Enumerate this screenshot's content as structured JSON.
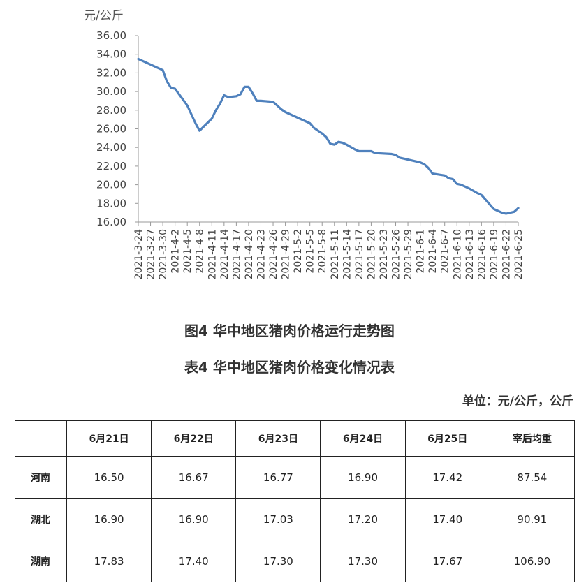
{
  "chart_data": {
    "type": "line",
    "ylabel": "元/公斤",
    "ylim": [
      16,
      36
    ],
    "yticks": [
      "16.00",
      "18.00",
      "20.00",
      "22.00",
      "24.00",
      "26.00",
      "28.00",
      "30.00",
      "32.00",
      "34.00",
      "36.00"
    ],
    "grid": false,
    "xticks": [
      "2021-3-24",
      "2021-3-27",
      "2021-3-30",
      "2021-4-2",
      "2021-4-5",
      "2021-4-8",
      "2021-4-11",
      "2021-4-14",
      "2021-4-17",
      "2021-4-20",
      "2021-4-23",
      "2021-4-26",
      "2021-4-29",
      "2021-5-2",
      "2021-5-5",
      "2021-5-8",
      "2021-5-11",
      "2021-5-14",
      "2021-5-17",
      "2021-5-20",
      "2021-5-23",
      "2021-5-26",
      "2021-5-29",
      "2021-6-1",
      "2021-6-4",
      "2021-6-7",
      "2021-6-10",
      "2021-6-13",
      "2021-6-16",
      "2021-6-19",
      "2021-6-22",
      "2021-6-25"
    ],
    "series": [
      {
        "color": "#4f81bd",
        "points": [
          [
            "2021-3-24",
            33.5
          ],
          [
            "2021-3-27",
            32.9
          ],
          [
            "2021-3-30",
            32.3
          ],
          [
            "2021-3-31",
            31.1
          ],
          [
            "2021-4-1",
            30.4
          ],
          [
            "2021-4-2",
            30.3
          ],
          [
            "2021-4-5",
            28.5
          ],
          [
            "2021-4-7",
            26.6
          ],
          [
            "2021-4-8",
            25.8
          ],
          [
            "2021-4-11",
            27.1
          ],
          [
            "2021-4-12",
            28.0
          ],
          [
            "2021-4-13",
            28.7
          ],
          [
            "2021-4-14",
            29.6
          ],
          [
            "2021-4-15",
            29.4
          ],
          [
            "2021-4-17",
            29.5
          ],
          [
            "2021-4-18",
            29.7
          ],
          [
            "2021-4-19",
            30.5
          ],
          [
            "2021-4-20",
            30.5
          ],
          [
            "2021-4-21",
            29.8
          ],
          [
            "2021-4-22",
            29.0
          ],
          [
            "2021-4-23",
            29.0
          ],
          [
            "2021-4-26",
            28.9
          ],
          [
            "2021-4-27",
            28.5
          ],
          [
            "2021-4-28",
            28.1
          ],
          [
            "2021-4-29",
            27.8
          ],
          [
            "2021-5-2",
            27.2
          ],
          [
            "2021-5-5",
            26.6
          ],
          [
            "2021-5-6",
            26.1
          ],
          [
            "2021-5-8",
            25.5
          ],
          [
            "2021-5-9",
            25.1
          ],
          [
            "2021-5-10",
            24.4
          ],
          [
            "2021-5-11",
            24.3
          ],
          [
            "2021-5-12",
            24.6
          ],
          [
            "2021-5-13",
            24.5
          ],
          [
            "2021-5-14",
            24.3
          ],
          [
            "2021-5-16",
            23.8
          ],
          [
            "2021-5-17",
            23.6
          ],
          [
            "2021-5-20",
            23.6
          ],
          [
            "2021-5-21",
            23.4
          ],
          [
            "2021-5-25",
            23.3
          ],
          [
            "2021-5-26",
            23.2
          ],
          [
            "2021-5-27",
            22.9
          ],
          [
            "2021-5-28",
            22.8
          ],
          [
            "2021-5-29",
            22.7
          ],
          [
            "2021-6-1",
            22.4
          ],
          [
            "2021-6-2",
            22.2
          ],
          [
            "2021-6-3",
            21.8
          ],
          [
            "2021-6-4",
            21.2
          ],
          [
            "2021-6-7",
            21.0
          ],
          [
            "2021-6-8",
            20.7
          ],
          [
            "2021-6-9",
            20.6
          ],
          [
            "2021-6-10",
            20.1
          ],
          [
            "2021-6-11",
            20.0
          ],
          [
            "2021-6-13",
            19.6
          ],
          [
            "2021-6-15",
            19.1
          ],
          [
            "2021-6-16",
            18.9
          ],
          [
            "2021-6-19",
            17.4
          ],
          [
            "2021-6-20",
            17.2
          ],
          [
            "2021-6-21",
            17.0
          ],
          [
            "2021-6-22",
            16.9
          ],
          [
            "2021-6-24",
            17.1
          ],
          [
            "2021-6-25",
            17.5
          ]
        ]
      }
    ]
  },
  "figure_caption": "图4  华中地区猪肉价格运行走势图",
  "table_caption": "表4  华中地区猪肉价格变化情况表",
  "unit_note": "单位：元/公斤，公斤",
  "table": {
    "headers": [
      "",
      "6月21日",
      "6月22日",
      "6月23日",
      "6月24日",
      "6月25日",
      "宰后均重"
    ],
    "rows": [
      {
        "region": "河南",
        "values": [
          "16.50",
          "16.67",
          "16.77",
          "16.90",
          "17.42",
          "87.54"
        ]
      },
      {
        "region": "湖北",
        "values": [
          "16.90",
          "16.90",
          "17.03",
          "17.20",
          "17.40",
          "90.91"
        ]
      },
      {
        "region": "湖南",
        "values": [
          "17.83",
          "17.40",
          "17.30",
          "17.30",
          "17.67",
          "106.90"
        ]
      }
    ]
  }
}
